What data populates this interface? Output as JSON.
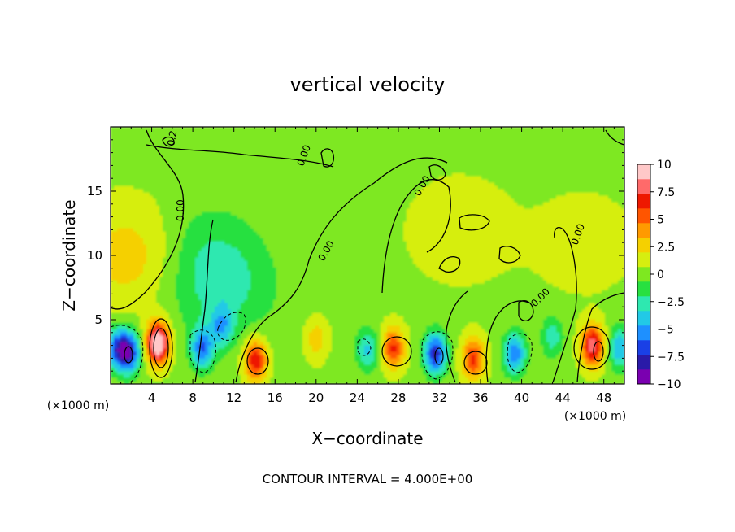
{
  "chart_data": {
    "type": "heatmap",
    "title": "vertical velocity",
    "xlabel": "X−coordinate",
    "ylabel": "Z−coordinate",
    "x_unit": "(×1000 m)",
    "y_unit": "(×1000 m)",
    "xlim": [
      0,
      50
    ],
    "ylim": [
      0,
      20
    ],
    "x_ticks": [
      4,
      8,
      12,
      16,
      20,
      24,
      28,
      32,
      36,
      40,
      44,
      48
    ],
    "x_tick_labels": [
      "4",
      "8",
      "12",
      "16",
      "20",
      "24",
      "28",
      "32",
      "36",
      "40",
      "44",
      "48"
    ],
    "y_ticks": [
      5,
      10,
      15
    ],
    "y_tick_labels": [
      "5",
      "10",
      "15"
    ],
    "colorbar": {
      "min": -10,
      "max": 10,
      "ticks": [
        10,
        7.5,
        5,
        2.5,
        0,
        -2.5,
        -5,
        -7.5,
        -10
      ],
      "tick_labels": [
        "10",
        "7.5",
        "5",
        "2.5",
        "0",
        "−2.5",
        "−5",
        "−7.5",
        "−10"
      ],
      "colors": [
        "#7a00b0",
        "#2a1aa8",
        "#1a40e6",
        "#1e90ff",
        "#22c9e6",
        "#2ee8b0",
        "#28e040",
        "#7ee820",
        "#d6ee10",
        "#f5d000",
        "#ff9a00",
        "#ff5500",
        "#ee1800",
        "#ff6a6a",
        "#ffc8c8"
      ]
    },
    "contour_labels": [
      "0.00",
      "0.00",
      "0.00",
      "0.00",
      "0.00",
      "0.00",
      "0.2"
    ],
    "features": [
      {
        "x": 0.6,
        "z": 2.8,
        "value": -6
      },
      {
        "x": 1.8,
        "z": 2.5,
        "value": -8
      },
      {
        "x": 4.6,
        "z": 3.2,
        "value": 11
      },
      {
        "x": 8.9,
        "z": 2.8,
        "value": -6
      },
      {
        "x": 10.8,
        "z": 4.5,
        "value": -4
      },
      {
        "x": 14.1,
        "z": 1.9,
        "value": 7
      },
      {
        "x": 20.0,
        "z": 3.5,
        "value": 2.5
      },
      {
        "x": 25.0,
        "z": 2.7,
        "value": -4
      },
      {
        "x": 27.5,
        "z": 2.8,
        "value": 6
      },
      {
        "x": 31.6,
        "z": 2.4,
        "value": -8
      },
      {
        "x": 35.3,
        "z": 2.0,
        "value": 6
      },
      {
        "x": 39.3,
        "z": 2.4,
        "value": -6
      },
      {
        "x": 43.0,
        "z": 3.7,
        "value": -3
      },
      {
        "x": 46.9,
        "z": 3.0,
        "value": 8
      },
      {
        "x": 49.6,
        "z": 2.8,
        "value": -5
      },
      {
        "x": 9.0,
        "z": 10.5,
        "value": -1.5
      },
      {
        "x": 11.0,
        "z": 7.5,
        "value": -2.5
      },
      {
        "x": 2.0,
        "z": 10.0,
        "value": 2.5
      },
      {
        "x": 34.0,
        "z": 12.0,
        "value": 1.2
      },
      {
        "x": 46.0,
        "z": 11.0,
        "value": 1.0
      }
    ],
    "contour_interval": "CONTOUR INTERVAL = 4.000E+00"
  }
}
